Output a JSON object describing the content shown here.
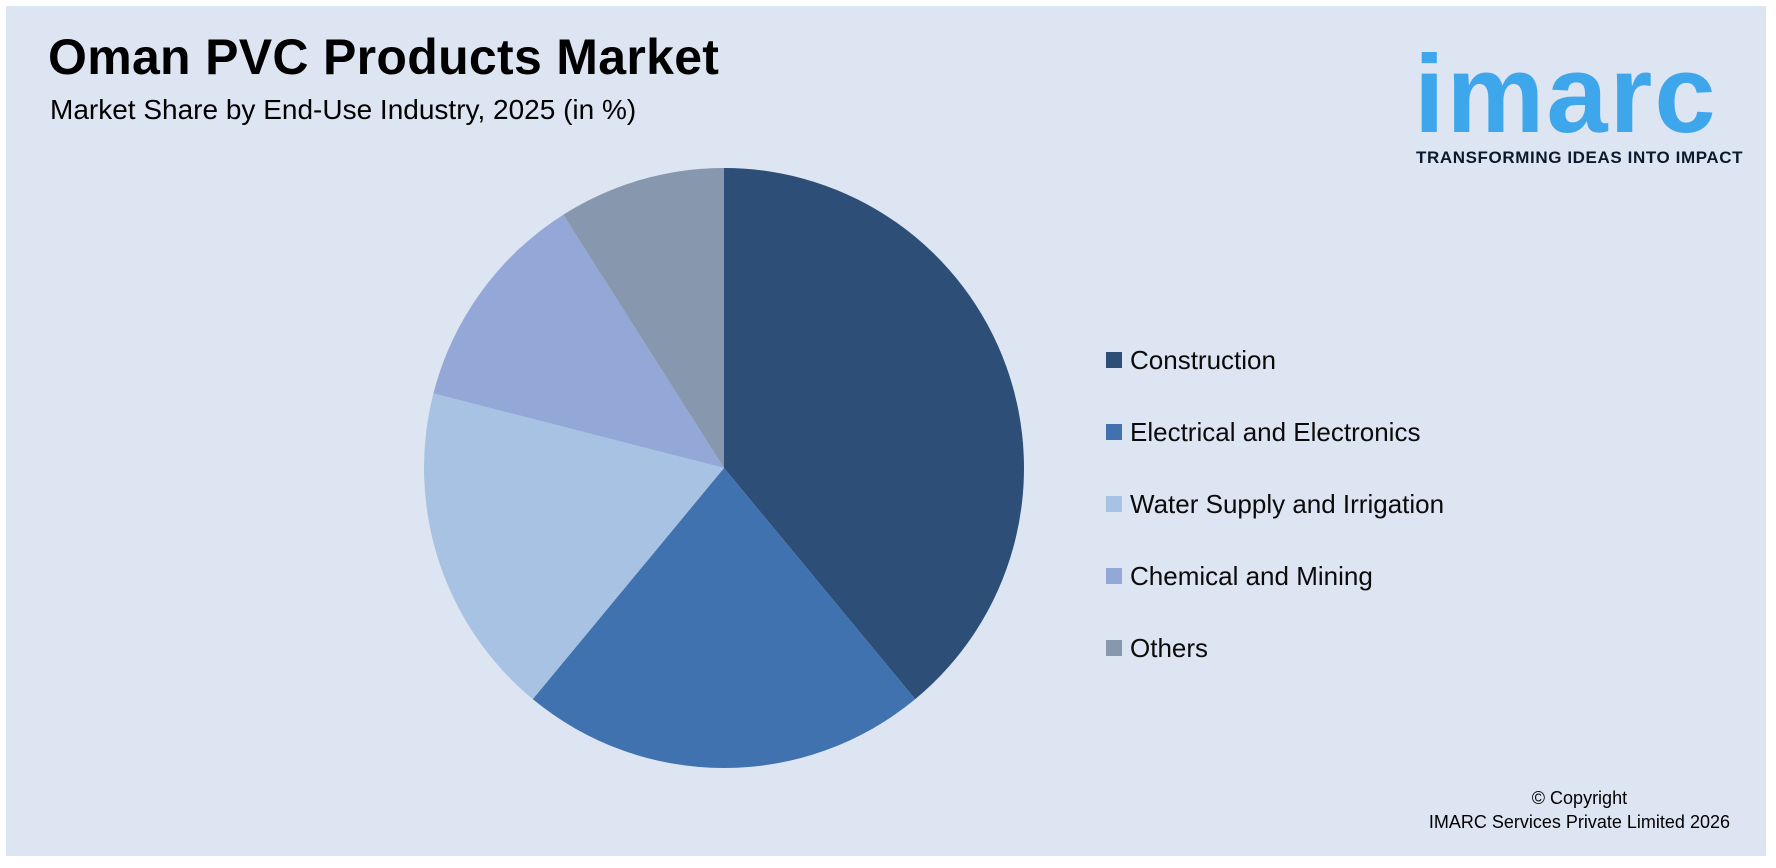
{
  "header": {
    "title": "Oman PVC Products Market",
    "subtitle": "Market Share by End-Use Industry, 2025 (in %)"
  },
  "logo": {
    "word": "imarc",
    "tagline": "TRANSFORMING IDEAS INTO IMPACT",
    "color": "#3ea6ea"
  },
  "chart_data": {
    "type": "pie",
    "title": "Oman PVC Products Market",
    "subtitle": "Market Share by End-Use Industry, 2025 (in %)",
    "categories": [
      "Construction",
      "Electrical and Electronics",
      "Water Supply and Irrigation",
      "Chemical and Mining",
      "Others"
    ],
    "values": [
      39,
      22,
      18,
      12,
      9
    ],
    "colors": [
      "#2c4e77",
      "#3f72af",
      "#a7c2e2",
      "#94a8d8",
      "#8797ae"
    ],
    "start_angle_deg": 0,
    "direction": "clockwise",
    "legend_position": "right"
  },
  "footer": {
    "copyright_line1": "© Copyright",
    "copyright_line2": "IMARC Services Private Limited 2026"
  }
}
